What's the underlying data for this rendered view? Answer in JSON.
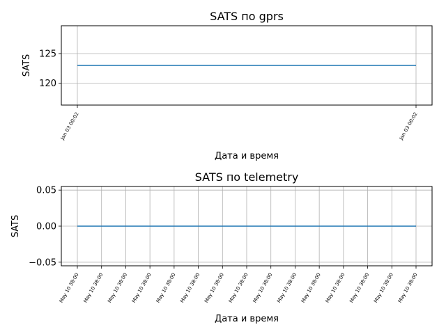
{
  "chart_data": [
    {
      "type": "line",
      "title": "SATS по gprs",
      "xlabel": "Дата и время",
      "ylabel": "SATS",
      "x": [
        "Jan 03 00:02",
        "Jan 03 00:02"
      ],
      "series": [
        {
          "values": [
            123,
            123
          ],
          "color": "#1f77b4"
        }
      ],
      "ylim": [
        116.3,
        129.7
      ],
      "yticks": [
        120,
        125
      ],
      "ytick_labels": [
        "120",
        "125"
      ],
      "xtick_labels": [
        "Jan 03 00:02",
        "Jan 03 00:02"
      ],
      "grid": true
    },
    {
      "type": "line",
      "title": "SATS по telemetry",
      "xlabel": "Дата и время",
      "ylabel": "SATS",
      "x": [
        "May 10 38:00",
        "May 10 38:00",
        "May 10 38:00",
        "May 10 38:00",
        "May 10 38:00",
        "May 10 38:00",
        "May 10 38:00",
        "May 10 38:00",
        "May 10 38:00",
        "May 10 38:00",
        "May 10 38:00",
        "May 10 38:00",
        "May 10 38:00",
        "May 10 38:00",
        "May 10 38:00"
      ],
      "series": [
        {
          "values": [
            0,
            0,
            0,
            0,
            0,
            0,
            0,
            0,
            0,
            0,
            0,
            0,
            0,
            0,
            0
          ],
          "color": "#1f77b4"
        }
      ],
      "ylim": [
        -0.055,
        0.055
      ],
      "yticks": [
        -0.05,
        0,
        0.05
      ],
      "ytick_labels": [
        "−0.05",
        "0.00",
        "0.05"
      ],
      "xtick_labels": [
        "May 10 38:00",
        "May 10 38:00",
        "May 10 38:00",
        "May 10 38:00",
        "May 10 38:00",
        "May 10 38:00",
        "May 10 38:00",
        "May 10 38:00",
        "May 10 38:00",
        "May 10 38:00",
        "May 10 38:00",
        "May 10 38:00",
        "May 10 38:00",
        "May 10 38:00",
        "May 10 38:00"
      ],
      "grid": true
    }
  ]
}
